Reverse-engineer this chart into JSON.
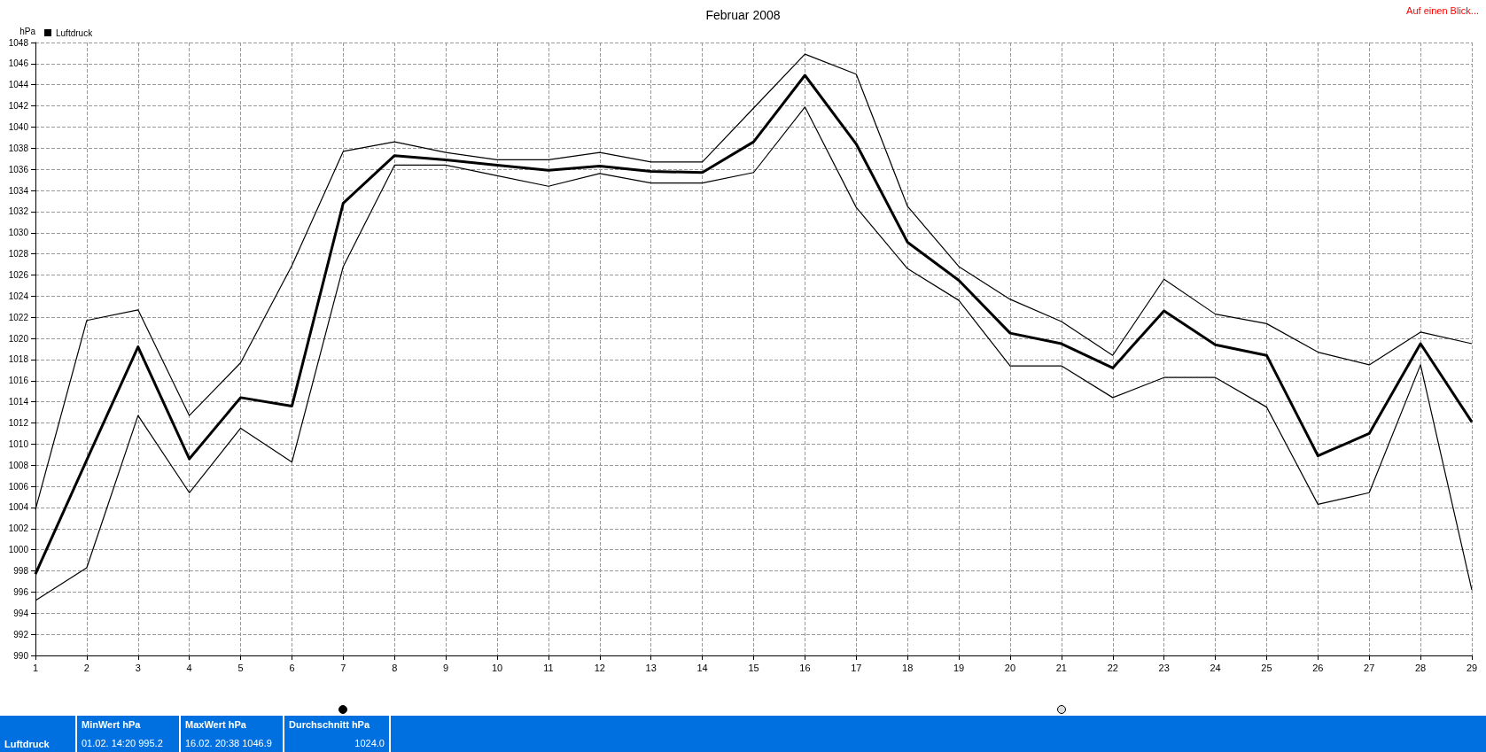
{
  "chart_data": {
    "type": "line",
    "title": "Februar 2008",
    "ylabel": "hPa",
    "x": [
      1,
      2,
      3,
      4,
      5,
      6,
      7,
      8,
      9,
      10,
      11,
      12,
      13,
      14,
      15,
      16,
      17,
      18,
      19,
      20,
      21,
      22,
      23,
      24,
      25,
      26,
      27,
      28,
      29
    ],
    "series": [
      {
        "color": "#000000",
        "values": [
          1003.8,
          1021.7,
          1022.7,
          1012.7,
          1017.7,
          1026.9,
          1037.7,
          1038.6,
          1037.6,
          1036.9,
          1036.9,
          1037.6,
          1036.7,
          1036.7,
          1041.8,
          1046.9,
          1045.0,
          1032.5,
          1026.8,
          1023.7,
          1021.6,
          1018.4,
          1025.6,
          1022.3,
          1021.4,
          1018.7,
          1017.5,
          1020.6,
          1019.5
        ]
      },
      {
        "name": "Luftdruck",
        "color": "#000000",
        "values": [
          997.7,
          1008.5,
          1019.2,
          1008.6,
          1014.4,
          1013.6,
          1032.8,
          1037.3,
          1036.9,
          1036.4,
          1035.9,
          1036.3,
          1035.8,
          1035.7,
          1038.6,
          1044.9,
          1038.4,
          1029.1,
          1025.5,
          1020.5,
          1019.5,
          1017.2,
          1022.6,
          1019.4,
          1018.4,
          1008.9,
          1011.0,
          1019.5,
          1012.1
        ]
      },
      {
        "color": "#000000",
        "values": [
          995.2,
          998.3,
          1012.7,
          1005.4,
          1011.5,
          1008.3,
          1026.8,
          1036.4,
          1036.4,
          1035.4,
          1034.4,
          1035.6,
          1034.7,
          1034.7,
          1035.7,
          1041.9,
          1032.4,
          1026.6,
          1023.6,
          1017.4,
          1017.4,
          1014.4,
          1016.3,
          1016.3,
          1013.5,
          1004.3,
          1005.4,
          1017.5,
          996.2
        ]
      }
    ],
    "xlim": [
      1,
      29
    ],
    "xticks": [
      1,
      2,
      3,
      4,
      5,
      6,
      7,
      8,
      9,
      10,
      11,
      12,
      13,
      14,
      15,
      16,
      17,
      18,
      19,
      20,
      21,
      22,
      23,
      24,
      25,
      26,
      27,
      28,
      29
    ],
    "ylim": [
      990,
      1048
    ],
    "yticks": [
      990,
      992,
      994,
      996,
      998,
      1000,
      1002,
      1004,
      1006,
      1008,
      1010,
      1012,
      1014,
      1016,
      1018,
      1020,
      1022,
      1024,
      1026,
      1028,
      1030,
      1032,
      1034,
      1036,
      1038,
      1040,
      1042,
      1044,
      1046,
      1048
    ],
    "grid": true,
    "legend": "top left",
    "marker": "none",
    "line_style": "solid",
    "annotations": [
      "Auf einen Blick...",
      "Luftdruck",
      "MinWert hPa",
      "01.02. 14:20 995.2",
      "MaxWert hPa",
      "16.02. 20:38 1046.9",
      "Durchschnitt hPa",
      "1024.0"
    ]
  }
}
